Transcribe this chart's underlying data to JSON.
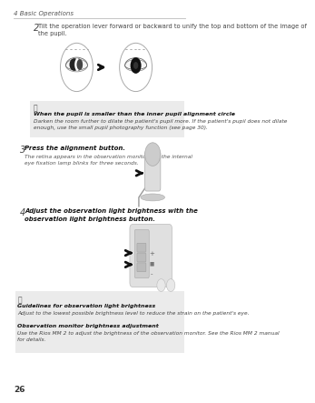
{
  "header_text": "4 Basic Operations",
  "page_number": "26",
  "bg_color": "#ffffff",
  "header_line_color": "#bbbbbb",
  "step2_num": "2",
  "step2_text": "Tilt the operation lever forward or backward to unify the top and bottom of the image of\nthe pupil.",
  "note1_bold": "When the pupil is smaller than the inner pupil alignment circle",
  "note1_body": "Darken the room further to dilate the patient's pupil more. If the patient's pupil does not dilate\nenough, use the small pupil photography function (see page 30).",
  "step3_num": "3",
  "step3_bold": "Press the alignment button.",
  "step3_body": "The retina appears in the observation monitor and the internal\neye fixation lamp blinks for three seconds.",
  "step4_num": "4",
  "step4_bold": "Adjust the observation light brightness with the\nobservation light brightness button.",
  "note2_bold1": "Guidelines for observation light brightness",
  "note2_body1": "Adjust to the lowest possible brightness level to reduce the strain on the patient's eye.",
  "note2_bold2": "Observation monitor brightness adjustment",
  "note2_body2": "Use the Rios MM 2 to adjust the brightness of the observation monitor. See the Rios MM 2 manual\nfor details.",
  "gray_box_color": "#ebebeb",
  "text_color": "#444444",
  "bold_color": "#222222",
  "italic_color": "#555555"
}
